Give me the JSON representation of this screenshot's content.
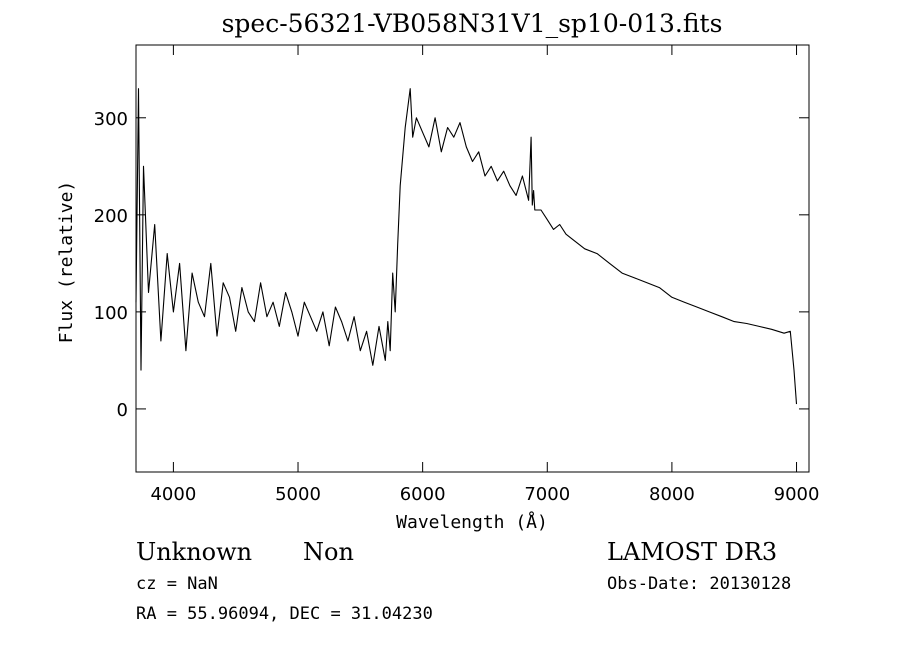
{
  "chart_data": {
    "type": "line",
    "title": "spec-56321-VB058N31V1_sp10-013.fits",
    "xlabel": "Wavelength (Å)",
    "ylabel": "Flux (relative)",
    "xlim": [
      3700,
      9100
    ],
    "ylim": [
      -65,
      375
    ],
    "xticks": [
      4000,
      5000,
      6000,
      7000,
      8000,
      9000
    ],
    "yticks": [
      0,
      100,
      200,
      300
    ],
    "grid": false,
    "series": [
      {
        "x": [
          3700,
          3720,
          3740,
          3760,
          3800,
          3850,
          3900,
          3950,
          4000,
          4050,
          4100,
          4150,
          4200,
          4250,
          4300,
          4350,
          4400,
          4450,
          4500,
          4550,
          4600,
          4650,
          4700,
          4750,
          4800,
          4850,
          4900,
          4950,
          5000,
          5050,
          5100,
          5150,
          5200,
          5250,
          5300,
          5350,
          5400,
          5450,
          5500,
          5550,
          5600,
          5650,
          5700,
          5720,
          5740,
          5760,
          5780,
          5800,
          5820,
          5840,
          5860,
          5880,
          5900,
          5920,
          5950,
          6000,
          6050,
          6100,
          6150,
          6200,
          6250,
          6300,
          6350,
          6400,
          6450,
          6500,
          6550,
          6600,
          6650,
          6700,
          6750,
          6800,
          6850,
          6870,
          6880,
          6890,
          6900,
          6950,
          7000,
          7050,
          7100,
          7150,
          7200,
          7300,
          7400,
          7500,
          7600,
          7700,
          7800,
          7900,
          8000,
          8100,
          8200,
          8300,
          8400,
          8500,
          8600,
          8700,
          8800,
          8900,
          8950,
          8980,
          9000
        ],
        "y": [
          110,
          330,
          40,
          250,
          120,
          190,
          70,
          160,
          100,
          150,
          60,
          140,
          110,
          95,
          150,
          75,
          130,
          115,
          80,
          125,
          100,
          90,
          130,
          95,
          110,
          85,
          120,
          100,
          75,
          110,
          95,
          80,
          100,
          65,
          105,
          90,
          70,
          95,
          60,
          80,
          45,
          85,
          50,
          90,
          60,
          140,
          100,
          170,
          230,
          260,
          290,
          310,
          330,
          280,
          300,
          285,
          270,
          300,
          265,
          290,
          280,
          295,
          270,
          255,
          265,
          240,
          250,
          235,
          245,
          230,
          220,
          240,
          215,
          280,
          210,
          225,
          205,
          205,
          195,
          185,
          190,
          180,
          175,
          165,
          160,
          150,
          140,
          135,
          130,
          125,
          115,
          110,
          105,
          100,
          95,
          90,
          88,
          85,
          82,
          78,
          80,
          40,
          5
        ]
      }
    ]
  },
  "footer": {
    "object_class": "Unknown",
    "subclass": "Non",
    "survey": "LAMOST DR3",
    "cz": "cz = NaN",
    "obs_date": "Obs-Date: 20130128",
    "coords": "RA =  55.96094, DEC =  31.04230"
  }
}
